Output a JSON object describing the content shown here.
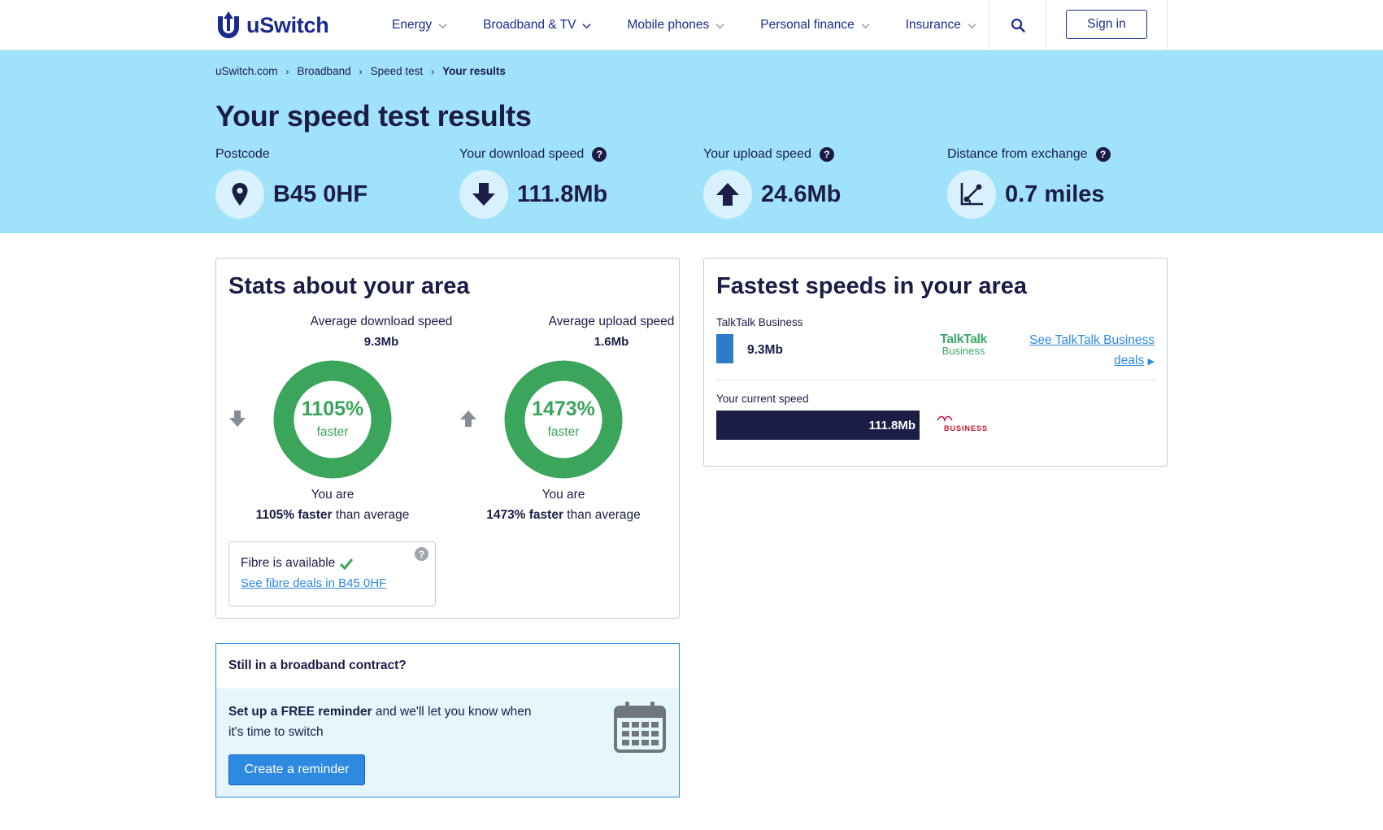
{
  "header": {
    "logo_text": "uSwitch",
    "nav": [
      {
        "label": "Energy"
      },
      {
        "label": "Broadband & TV"
      },
      {
        "label": "Mobile phones"
      },
      {
        "label": "Personal finance"
      },
      {
        "label": "Insurance"
      }
    ],
    "sign_in_label": "Sign in"
  },
  "hero": {
    "breadcrumb": [
      "uSwitch.com",
      "Broadband",
      "Speed test",
      "Your results"
    ],
    "title": "Your speed test results",
    "stats": [
      {
        "label": "Postcode",
        "value": "B45 0HF",
        "icon": "location-pin-icon"
      },
      {
        "label": "Your download speed",
        "value": "111.8Mb",
        "icon": "download-arrow-icon"
      },
      {
        "label": "Your upload speed",
        "value": "24.6Mb",
        "icon": "upload-arrow-icon"
      },
      {
        "label": "Distance from exchange",
        "value": "0.7 miles",
        "icon": "distance-icon"
      }
    ],
    "help_glyph": "?"
  },
  "area_stats": {
    "title": "Stats about your area",
    "download": {
      "label": "Average download speed",
      "value": "9.3Mb",
      "percent": "1105%",
      "percent_sub": "faster",
      "you_are": "You are",
      "faster_bold": "1105% faster",
      "faster_rest": " than average"
    },
    "upload": {
      "label": "Average upload speed",
      "value": "1.6Mb",
      "percent": "1473%",
      "percent_sub": "faster",
      "you_are": "You are",
      "faster_bold": "1473% faster",
      "faster_rest": " than average"
    },
    "fibre": {
      "text": "Fibre is available",
      "link": "See fibre deals in B45 0HF"
    }
  },
  "fastest": {
    "title": "Fastest speeds in your area",
    "provider": {
      "name": "TalkTalk Business",
      "speed": "9.3Mb",
      "speed_mbps": 9.3,
      "logo_line1": "TalkTalk",
      "logo_line2": "Business",
      "link_line1": "See TalkTalk Business",
      "link_line2": "deals"
    },
    "current": {
      "label": "Your current speed",
      "speed": "111.8Mb",
      "speed_mbps": 111.8,
      "logo_text": "BUSINESS"
    }
  },
  "reminder": {
    "heading": "Still in a broadband contract?",
    "text_bold": "Set up a FREE reminder",
    "text_rest": " and we'll let you know when it's time to switch",
    "button": "Create a reminder"
  },
  "colors": {
    "navy": "#1b1d46",
    "brand_blue": "#1a2a8e",
    "hero_bg": "#a1e2fb",
    "ring_green": "#3ba55c",
    "link_blue": "#2d8ae0",
    "talktalk_green": "#3daa6b",
    "virgin_red": "#c8102e"
  }
}
